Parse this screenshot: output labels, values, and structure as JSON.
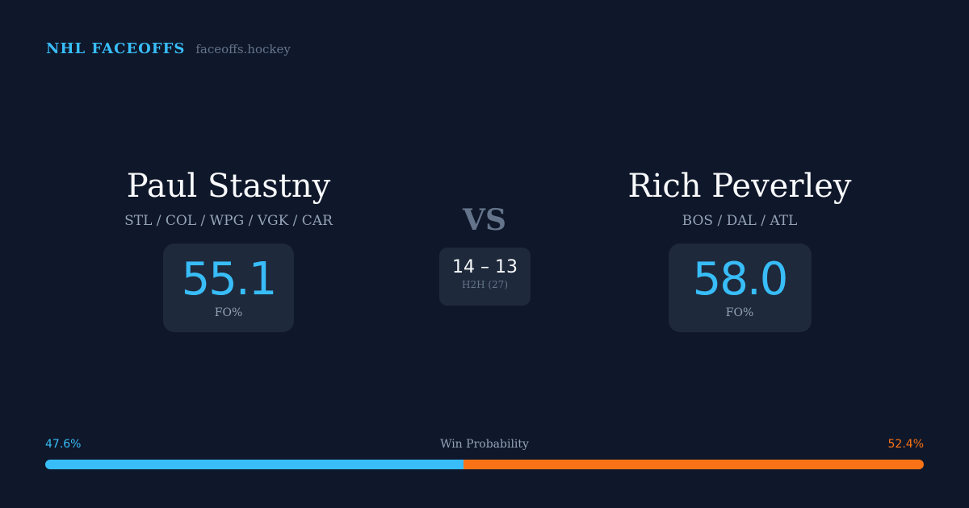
{
  "brand": {
    "title": "NHL FACEOFFS",
    "url": "faceoffs.hockey"
  },
  "player1": {
    "name": "Paul Stastny",
    "teams": "STL / COL / WPG / VGK / CAR",
    "fo_pct": "55.1",
    "fo_label": "FO%"
  },
  "player2": {
    "name": "Rich Peverley",
    "teams": "BOS / DAL / ATL",
    "fo_pct": "58.0",
    "fo_label": "FO%"
  },
  "vs": "VS",
  "h2h": {
    "score": "14 – 13",
    "label": "H2H (27)"
  },
  "win_probability": {
    "label": "Win Probability",
    "left_text": "47.6%",
    "right_text": "52.4%",
    "left": 47.6,
    "right": 52.4,
    "left_color": "#38bdf8",
    "right_color": "#f97316"
  }
}
